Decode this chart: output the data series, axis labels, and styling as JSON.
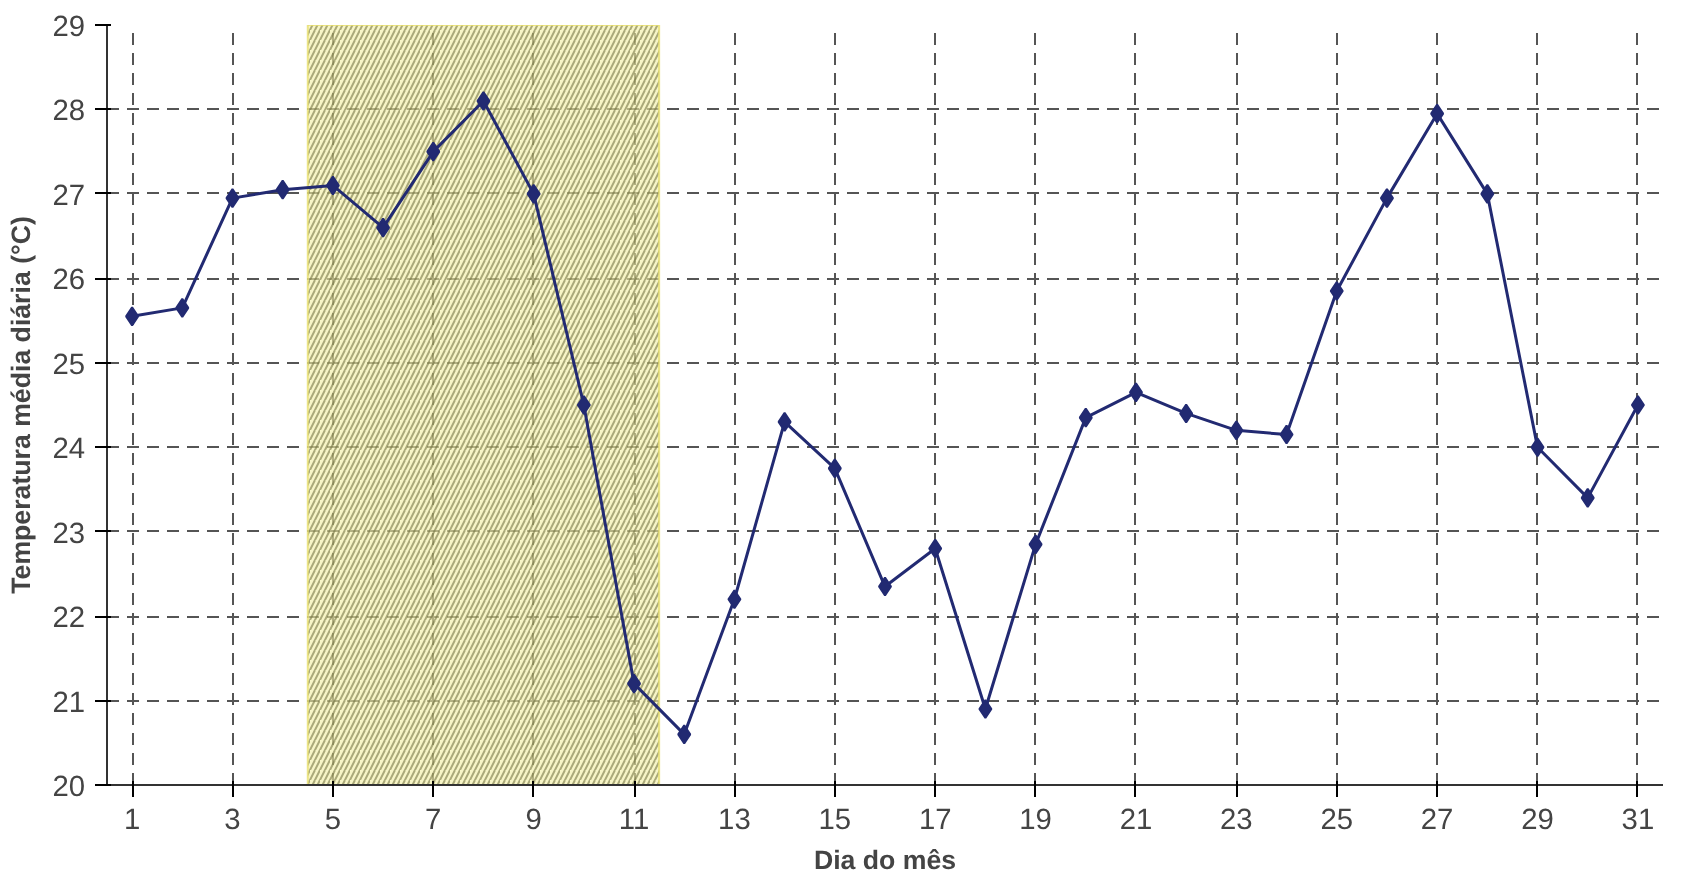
{
  "chart_data": {
    "type": "line",
    "xlabel": "Dia do mês",
    "ylabel": "Temperatura média diária (°C)",
    "x": [
      1,
      2,
      3,
      4,
      5,
      6,
      7,
      8,
      9,
      10,
      11,
      12,
      13,
      14,
      15,
      16,
      17,
      18,
      19,
      20,
      21,
      22,
      23,
      24,
      25,
      26,
      27,
      28,
      29,
      30,
      31
    ],
    "series": [
      {
        "color": "#222a72",
        "values": [
          25.55,
          25.65,
          26.95,
          27.05,
          27.1,
          26.6,
          27.5,
          28.1,
          27.0,
          24.5,
          21.2,
          20.6,
          22.2,
          24.3,
          23.75,
          22.35,
          22.8,
          20.9,
          22.85,
          24.35,
          24.65,
          24.4,
          24.2,
          24.15,
          25.85,
          26.95,
          27.95,
          27.0,
          24.0,
          23.4,
          24.5
        ]
      }
    ],
    "xlim": [
      0.5,
      31.5
    ],
    "xticks": [
      1,
      3,
      5,
      7,
      9,
      11,
      13,
      15,
      17,
      19,
      21,
      23,
      25,
      27,
      29,
      31
    ],
    "ylim": [
      20,
      29
    ],
    "yticks": [
      20,
      21,
      22,
      23,
      24,
      25,
      26,
      27,
      28,
      29
    ],
    "bands": [
      {
        "axis": "x",
        "from": 4.5,
        "to": 11.5,
        "color": "#f2eea0"
      }
    ],
    "grid": true,
    "marker": "diamond",
    "line_style": "solid"
  }
}
